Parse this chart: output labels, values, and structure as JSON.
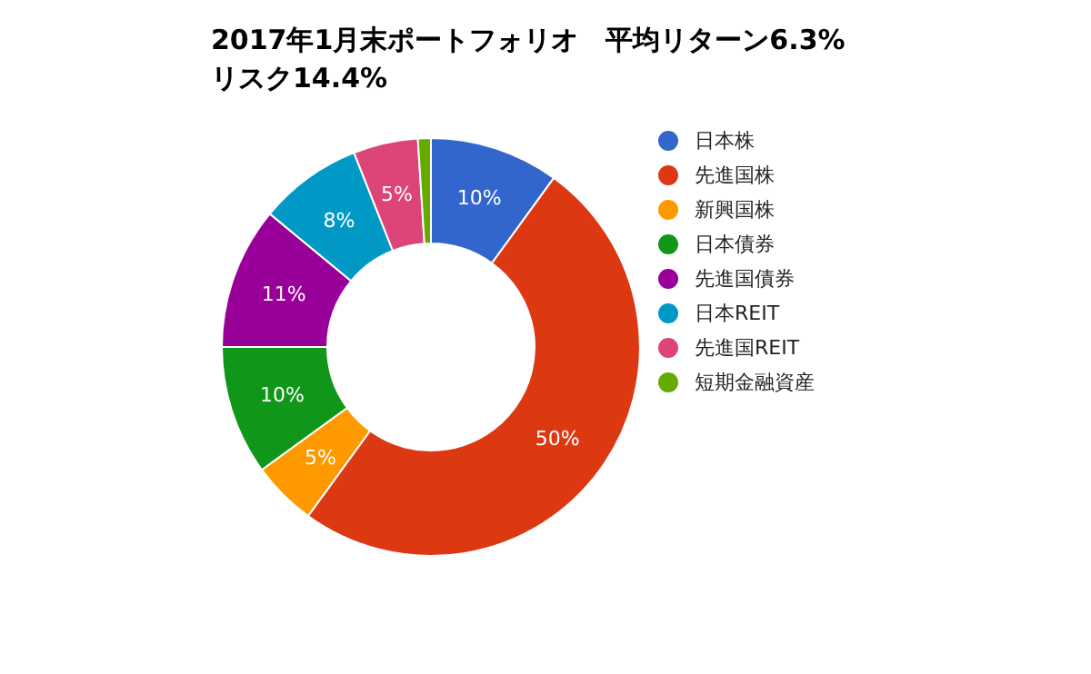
{
  "chart_data": {
    "type": "donut",
    "title": "2017年1月末ポートフォリオ　平均リターン6.3%",
    "subtitle": "リスク14.4%",
    "categories": [
      "日本株",
      "先進国株",
      "新興国株",
      "日本債券",
      "先進国債券",
      "日本REIT",
      "先進国REIT",
      "短期金融資産"
    ],
    "values": [
      10,
      50,
      5,
      10,
      11,
      8,
      5,
      1
    ],
    "colors": [
      "#3366cc",
      "#dc3912",
      "#ff9900",
      "#109618",
      "#990099",
      "#0099c6",
      "#dd4477",
      "#66aa00"
    ],
    "value_labels": [
      "10%",
      "50%",
      "5%",
      "10%",
      "11%",
      "8%",
      "5%",
      null
    ],
    "legend": "right"
  }
}
